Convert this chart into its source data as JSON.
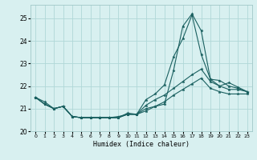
{
  "title": "",
  "xlabel": "Humidex (Indice chaleur)",
  "bg_color": "#d8f0f0",
  "line_color": "#1a6060",
  "grid_color": "#b0d8d8",
  "xlim": [
    -0.5,
    23.5
  ],
  "ylim": [
    20.0,
    25.6
  ],
  "yticks": [
    20,
    21,
    22,
    23,
    24,
    25
  ],
  "xticks": [
    0,
    1,
    2,
    3,
    4,
    5,
    6,
    7,
    8,
    9,
    10,
    11,
    12,
    13,
    14,
    15,
    16,
    17,
    18,
    19,
    20,
    21,
    22,
    23
  ],
  "series": [
    {
      "x": [
        0,
        1,
        2,
        3,
        4,
        5,
        6,
        7,
        8,
        9,
        10,
        11,
        12,
        13,
        14,
        15,
        16,
        17,
        18,
        19,
        20,
        21,
        22,
        23
      ],
      "y": [
        21.5,
        21.3,
        21.0,
        21.1,
        20.65,
        20.6,
        20.6,
        20.6,
        20.6,
        20.65,
        20.75,
        20.75,
        20.9,
        21.1,
        21.3,
        21.6,
        21.85,
        22.1,
        22.35,
        21.9,
        21.75,
        21.65,
        21.65,
        21.65
      ]
    },
    {
      "x": [
        0,
        1,
        2,
        3,
        4,
        5,
        6,
        7,
        8,
        9,
        10,
        11,
        12,
        13,
        14,
        15,
        16,
        17,
        18,
        19,
        20,
        21,
        22,
        23
      ],
      "y": [
        21.5,
        21.2,
        21.0,
        21.1,
        20.65,
        20.6,
        20.6,
        20.6,
        20.6,
        20.6,
        20.75,
        20.75,
        21.15,
        21.4,
        21.6,
        21.9,
        22.2,
        22.5,
        22.75,
        22.2,
        22.0,
        21.85,
        21.85,
        21.75
      ]
    },
    {
      "x": [
        0,
        1,
        2,
        3,
        4,
        5,
        6,
        7,
        8,
        9,
        10,
        11,
        12,
        13,
        14,
        15,
        16,
        17,
        18,
        19,
        20,
        21,
        22,
        23
      ],
      "y": [
        21.5,
        21.2,
        21.0,
        21.1,
        20.65,
        20.6,
        20.6,
        20.6,
        20.6,
        20.6,
        20.8,
        20.75,
        21.4,
        21.65,
        22.05,
        23.3,
        24.1,
        25.15,
        23.4,
        22.3,
        22.25,
        22.0,
        21.9,
        21.75
      ]
    },
    {
      "x": [
        0,
        1,
        2,
        3,
        4,
        5,
        6,
        7,
        8,
        9,
        10,
        11,
        12,
        13,
        14,
        15,
        16,
        17,
        18,
        19,
        20,
        21,
        22,
        23
      ],
      "y": [
        21.5,
        21.2,
        21.0,
        21.1,
        20.65,
        20.6,
        20.6,
        20.6,
        20.6,
        20.6,
        20.75,
        20.75,
        21.0,
        21.1,
        21.2,
        22.7,
        24.65,
        25.2,
        24.45,
        22.3,
        22.0,
        22.15,
        21.95,
        21.75
      ]
    }
  ]
}
